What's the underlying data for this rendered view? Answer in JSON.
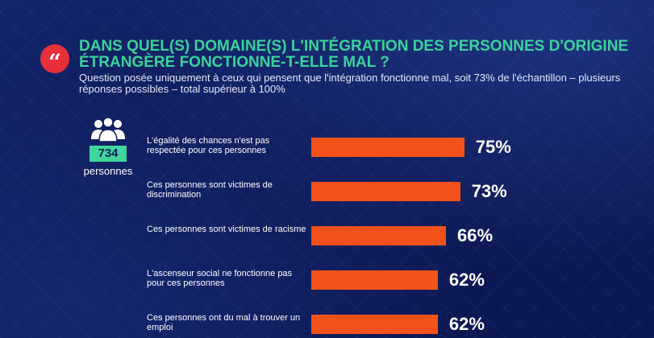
{
  "header": {
    "quote_icon": "quote-icon",
    "title": "DANS QUEL(S) DOMAINE(S) L'INTÉGRATION DES PERSONNES D'ORIGINE ÉTRANGÈRE FONCTIONNE-T-ELLE MAL ?",
    "subtitle": "Question posée uniquement à ceux qui pensent que l'intégration fonctionne mal, soit 73% de l'échantillon – plusieurs réponses possibles – total supérieur à 100%"
  },
  "sample": {
    "icon": "people-group-icon",
    "count": "734",
    "label": "personnes"
  },
  "colors": {
    "background": "#0f1e5e",
    "title": "#39d39a",
    "bar": "#f25219",
    "badge": "#e8303a"
  },
  "chart_data": {
    "type": "bar",
    "orientation": "horizontal",
    "categories": [
      "L'égalité des chances n'est pas respectée pour ces personnes",
      "Ces personnes sont victimes de discrimination",
      "Ces personnes sont victimes de racisme",
      "L'ascenseur social ne fonctionne pas pour ces personnes",
      "Ces personnes ont du mal à trouver un emploi"
    ],
    "values": [
      75,
      73,
      66,
      62,
      62
    ],
    "value_labels": [
      "75%",
      "73%",
      "66%",
      "62%",
      "62%"
    ],
    "xlim": [
      0,
      100
    ],
    "grid": false
  }
}
